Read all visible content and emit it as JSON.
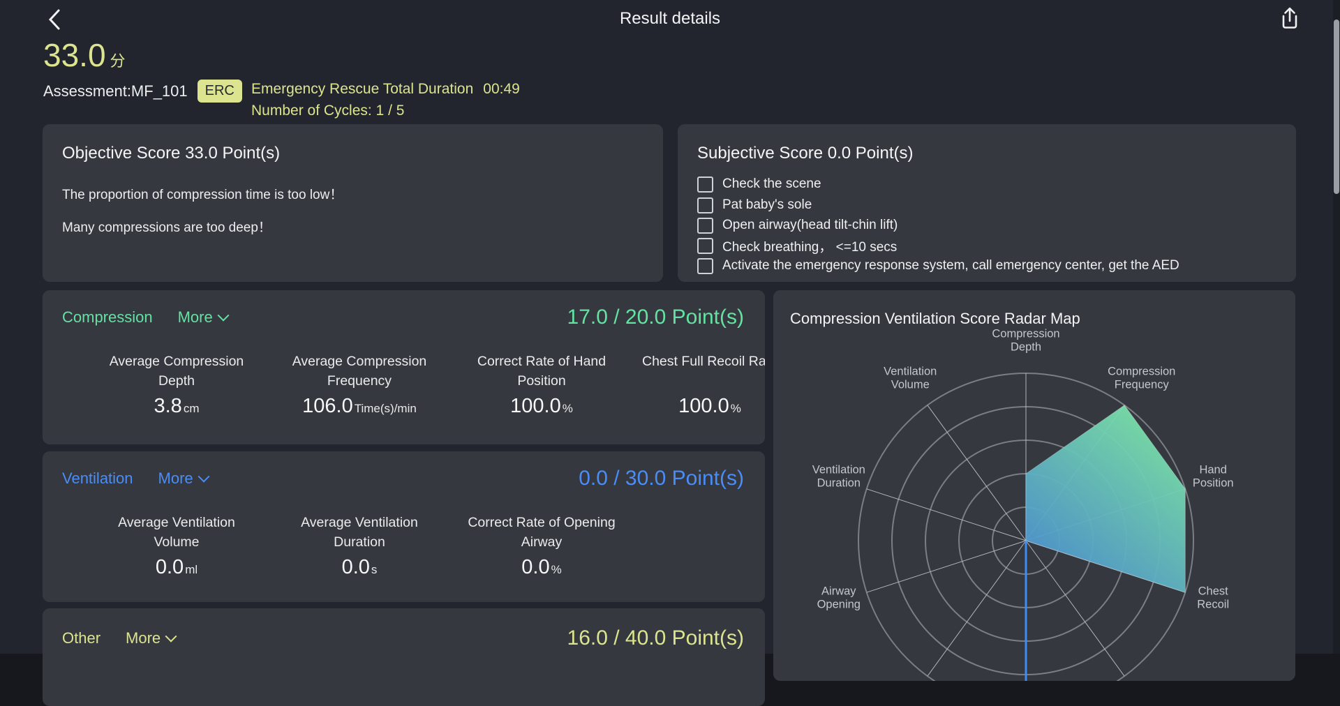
{
  "header": {
    "title": "Result details"
  },
  "summary": {
    "score": "33.0",
    "score_unit": "分",
    "assessment_label": "Assessment:MF_101",
    "badge": "ERC",
    "duration_label": "Emergency Rescue Total Duration",
    "duration_value": "00:49",
    "cycles_label": "Number of Cycles: 1 / 5"
  },
  "objective": {
    "title": "Objective Score 33.0  Point(s)",
    "messages": [
      "The proportion of compression time is too low！",
      "Many compressions are too deep！"
    ]
  },
  "subjective": {
    "title": "Subjective Score 0.0  Point(s)",
    "items": [
      {
        "label": "Check the scene",
        "checked": false
      },
      {
        "label": "Pat baby's sole",
        "checked": false
      },
      {
        "label": "Open airway(head tilt-chin lift)",
        "checked": false
      },
      {
        "label": "Check breathing， <=10 secs",
        "checked": false
      },
      {
        "label": "Activate the emergency response system, call emergency center, get the AED",
        "checked": false
      }
    ]
  },
  "sections": {
    "compression": {
      "name": "Compression",
      "more_label": "More",
      "score": "17.0 / 20.0 Point(s)",
      "accent": "#63e2a1",
      "metrics": [
        {
          "line1": "Average Compression",
          "line2": "Depth",
          "value": "3.8",
          "unit": "cm"
        },
        {
          "line1": "Average Compression",
          "line2": "Frequency",
          "value": "106.0",
          "unit": "Time(s)/min"
        },
        {
          "line1": "Correct Rate of Hand",
          "line2": "Position",
          "value": "100.0",
          "unit": "%"
        },
        {
          "line1": "Chest Full Recoil Rate",
          "line2": "",
          "value": "100.0",
          "unit": "%"
        }
      ]
    },
    "ventilation": {
      "name": "Ventilation",
      "more_label": "More",
      "score": "0.0 / 30.0 Point(s)",
      "accent": "#4a8df7",
      "metrics": [
        {
          "line1": "Average Ventilation",
          "line2": "Volume",
          "value": "0.0",
          "unit": "ml"
        },
        {
          "line1": "Average Ventilation",
          "line2": "Duration",
          "value": "0.0",
          "unit": "s"
        },
        {
          "line1": "Correct Rate of Opening",
          "line2": "Airway",
          "value": "0.0",
          "unit": "%"
        }
      ]
    },
    "other": {
      "name": "Other",
      "more_label": "More",
      "score": "16.0 / 40.0 Point(s)",
      "accent": "#dce48f"
    }
  },
  "radar_panel": {
    "title": "Compression Ventilation Score Radar Map"
  },
  "chart_data": {
    "type": "radar",
    "title": "Compression Ventilation Score Radar Map",
    "indicators": [
      "Compression Depth",
      "Compression Frequency",
      "Hand Position",
      "Chest Recoil",
      "",
      "",
      "",
      "Airway Opening",
      "Ventilation Duration",
      "Ventilation Volume"
    ],
    "values": [
      0.4,
      1.0,
      1.0,
      1.0,
      0,
      0,
      0,
      0,
      0,
      0
    ],
    "value_max": 1.0,
    "rings": 5,
    "start_angle_deg": 90,
    "highlight_axis_index": 5,
    "highlight_axis_color": "#3f8cf3",
    "series_gradient": [
      "#7ee8a4",
      "#4b8fd3"
    ],
    "legend": "none",
    "grid_shape": "circle"
  },
  "colors": {
    "page_bg": "#22252d",
    "panel_bg": "#35383e",
    "accent_yellow": "#dce48f",
    "accent_green": "#63e2a1",
    "accent_blue": "#4a8df7",
    "text_primary": "#eceef0"
  }
}
